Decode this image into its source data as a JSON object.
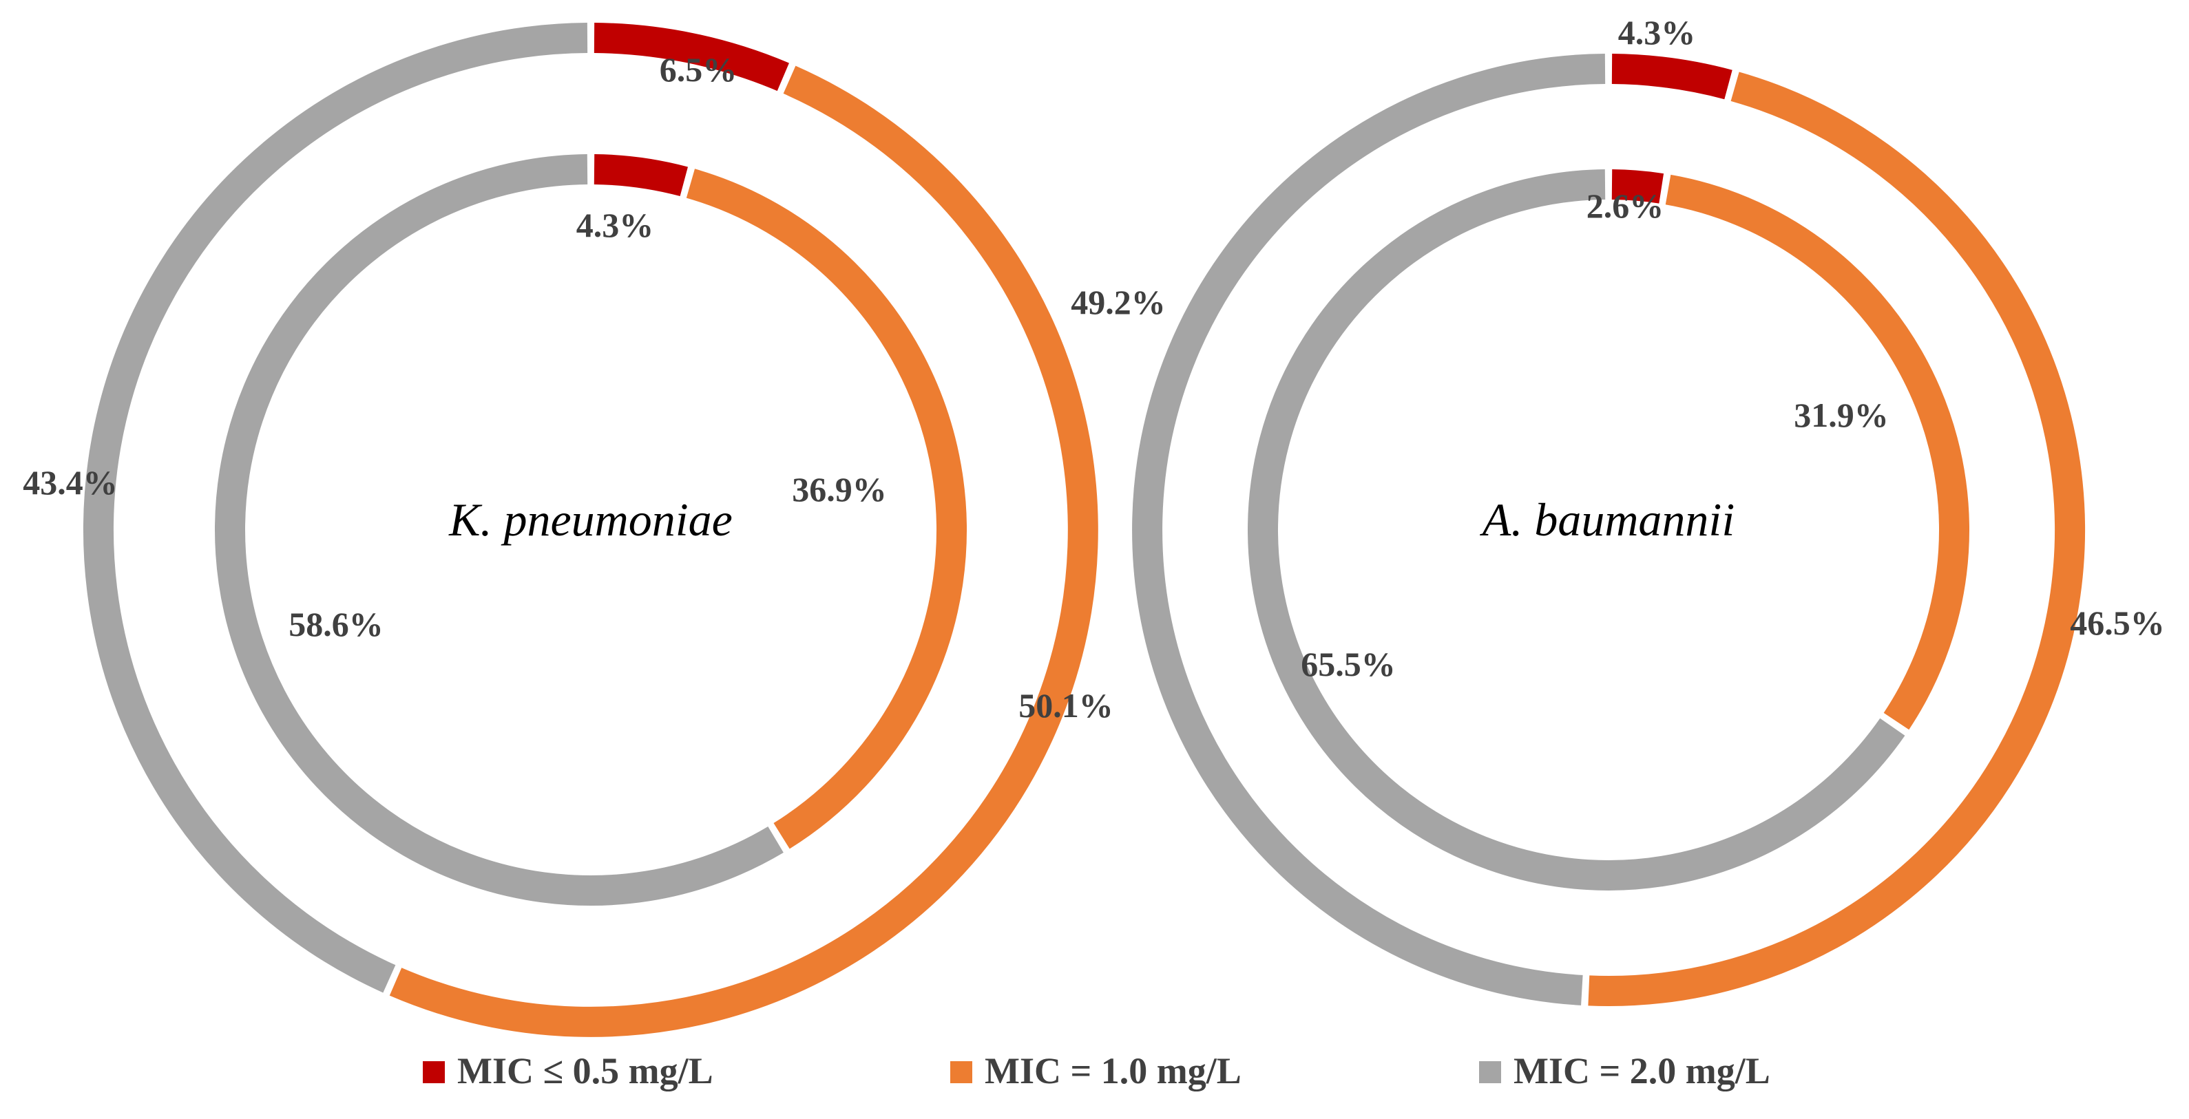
{
  "chart_data": {
    "type": "doughnut",
    "rings": [
      "outer",
      "inner"
    ],
    "categories": [
      "MIC ≤ 0.5 mg/L",
      "MIC = 1.0 mg/L",
      "MIC = 2.0 mg/L"
    ],
    "colors": [
      "#c00000",
      "#ed7d31",
      "#a5a5a5"
    ],
    "legend_position": "bottom",
    "charts": [
      {
        "title": "K. pneumoniae",
        "outer": {
          "values": [
            6.5,
            50.1,
            43.4
          ],
          "labels": [
            "6.5%",
            "50.1%",
            "43.4%"
          ]
        },
        "inner": {
          "values": [
            4.3,
            36.9,
            58.6
          ],
          "labels": [
            "4.3%",
            "36.9%",
            "58.6%"
          ]
        }
      },
      {
        "title": "A. baumannii",
        "outer": {
          "values": [
            4.3,
            46.5,
            49.2
          ],
          "labels": [
            "4.3%",
            "46.5%",
            "49.2%"
          ]
        },
        "inner": {
          "values": [
            2.6,
            31.9,
            65.5
          ],
          "labels": [
            "2.6%",
            "31.9%",
            "65.5%"
          ]
        }
      }
    ]
  },
  "legend": {
    "items": [
      {
        "label": "MIC ≤ 0.5 mg/L",
        "color": "#c00000"
      },
      {
        "label": "MIC = 1.0 mg/L",
        "color": "#ed7d31"
      },
      {
        "label": "MIC = 2.0 mg/L",
        "color": "#a5a5a5"
      }
    ]
  }
}
